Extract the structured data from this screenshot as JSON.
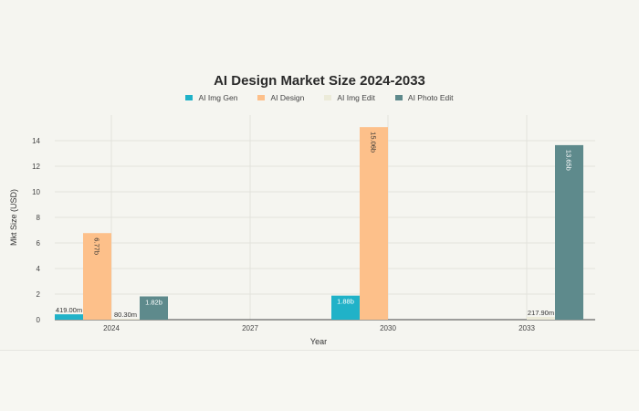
{
  "chart_data": {
    "type": "bar",
    "title": "AI Design Market Size 2024-2033",
    "xlabel": "Year",
    "ylabel": "Mkt Size (USD)",
    "categories": [
      "2024",
      "2027",
      "2030",
      "2033"
    ],
    "ylim": [
      0,
      16
    ],
    "yticks": [
      0,
      2,
      4,
      6,
      8,
      10,
      12,
      14
    ],
    "legend_position": "top-center",
    "grid": true,
    "series": [
      {
        "name": "AI Img Gen",
        "color": "#20b2c8",
        "values": [
          0.419,
          null,
          1.88,
          null
        ],
        "labels": [
          "419.00m",
          "",
          "1.88b",
          ""
        ]
      },
      {
        "name": "AI Design",
        "color": "#fdc08a",
        "values": [
          6.77,
          null,
          15.06,
          null
        ],
        "labels": [
          "6.77b",
          "",
          "15.06b",
          ""
        ]
      },
      {
        "name": "AI Img Edit",
        "color": "#ecebd9",
        "values": [
          0.0803,
          null,
          null,
          0.2179
        ],
        "labels": [
          "80.30m",
          "",
          "",
          "217.90m"
        ]
      },
      {
        "name": "AI Photo Edit",
        "color": "#5e8a8c",
        "values": [
          1.82,
          null,
          null,
          13.65
        ],
        "labels": [
          "1.82b",
          "",
          "",
          "13.65b"
        ]
      }
    ]
  }
}
